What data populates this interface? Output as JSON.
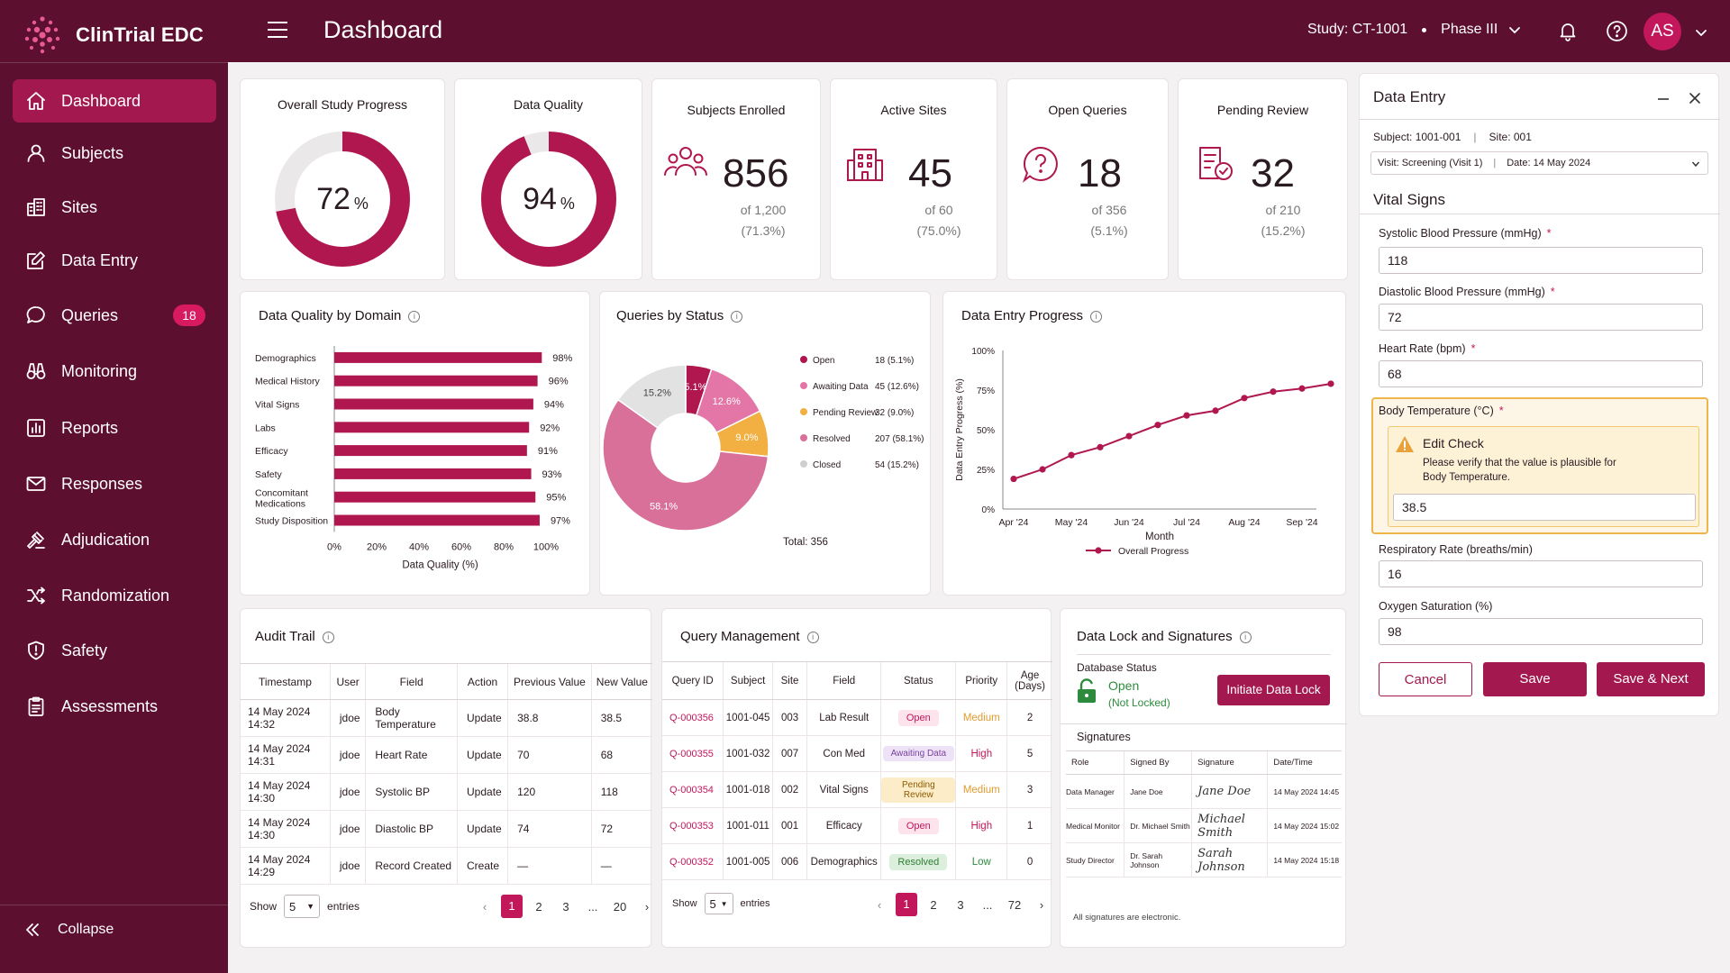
{
  "app": {
    "title": "ClinTrial EDC"
  },
  "sidebar": {
    "items": [
      {
        "label": "Dashboard",
        "icon": "home-icon",
        "active": true
      },
      {
        "label": "Subjects",
        "icon": "user-icon"
      },
      {
        "label": "Sites",
        "icon": "building-icon"
      },
      {
        "label": "Data Entry",
        "icon": "edit-icon"
      },
      {
        "label": "Queries",
        "icon": "chat-icon",
        "badge": "18"
      },
      {
        "label": "Monitoring",
        "icon": "binoculars-icon"
      },
      {
        "label": "Reports",
        "icon": "bar-chart-icon"
      },
      {
        "label": "Responses",
        "icon": "mail-icon"
      },
      {
        "label": "Adjudication",
        "icon": "gavel-icon"
      },
      {
        "label": "Randomization",
        "icon": "shuffle-icon"
      },
      {
        "label": "Safety",
        "icon": "shield-icon"
      },
      {
        "label": "Assessments",
        "icon": "clipboard-icon"
      }
    ],
    "collapse_label": "Collapse"
  },
  "header": {
    "title": "Dashboard",
    "study": "Study: CT-1001",
    "phase": "Phase III",
    "avatar_initials": "AS"
  },
  "kpis": {
    "overall": {
      "title": "Overall Study Progress",
      "value": "72",
      "unit": "%",
      "fraction": 0.72
    },
    "quality": {
      "title": "Data Quality",
      "value": "94",
      "unit": "%",
      "fraction": 0.94
    },
    "subjects": {
      "title": "Subjects Enrolled",
      "value": "856",
      "sub1": "of 1,200",
      "sub2": "(71.3%)"
    },
    "sites": {
      "title": "Active Sites",
      "value": "45",
      "sub1": "of 60",
      "sub2": "(75.0%)"
    },
    "queries": {
      "title": "Open Queries",
      "value": "18",
      "sub1": "of 356",
      "sub2": "(5.1%)"
    },
    "pending": {
      "title": "Pending Review",
      "value": "32",
      "sub1": "of 210",
      "sub2": "(15.2%)"
    }
  },
  "chart_data": [
    {
      "type": "bar",
      "title": "Data Quality by Domain",
      "orientation": "horizontal",
      "categories": [
        "Demographics",
        "Medical History",
        "Vital Signs",
        "Labs",
        "Efficacy",
        "Safety",
        "Concomitant Medications",
        "Study Disposition"
      ],
      "values": [
        98,
        96,
        94,
        92,
        91,
        93,
        95,
        97
      ],
      "value_labels": [
        "98%",
        "96%",
        "94%",
        "92%",
        "91%",
        "93%",
        "95%",
        "97%"
      ],
      "xlabel": "Data Quality (%)",
      "xlim": [
        0,
        100
      ],
      "xticks": [
        "0%",
        "20%",
        "40%",
        "60%",
        "80%",
        "100%"
      ],
      "color": "#b0174f"
    },
    {
      "type": "pie",
      "title": "Queries by Status",
      "donut": true,
      "total_label": "Total: 356",
      "slices": [
        {
          "name": "Open",
          "value": 18,
          "label": "5.1%",
          "count": "18 (5.1%)",
          "color": "#b0174f"
        },
        {
          "name": "Awaiting Data",
          "value": 45,
          "label": "12.6%",
          "count": "45 (12.6%)",
          "color": "#e376a6"
        },
        {
          "name": "Pending Review",
          "value": 32,
          "label": "9.0%",
          "count": "32 (9.0%)",
          "color": "#f2b042"
        },
        {
          "name": "Resolved",
          "value": 207,
          "label": "58.1%",
          "count": "207 (58.1%)",
          "color": "#d9709a"
        },
        {
          "name": "Closed",
          "value": 54,
          "label": "15.2%",
          "count": "54 (15.2%)",
          "color": "#e2e2e2"
        }
      ]
    },
    {
      "type": "line",
      "title": "Data Entry Progress",
      "xlabel": "Month",
      "ylabel": "Data Entry Progress (%)",
      "ylim": [
        0,
        100
      ],
      "yticks": [
        "0%",
        "25%",
        "50%",
        "75%",
        "100%"
      ],
      "xticks": [
        "Apr '24",
        "May '24",
        "Jun '24",
        "Jul '24",
        "Aug '24",
        "Sep '24"
      ],
      "series": [
        {
          "name": "Overall Progress",
          "color": "#b0174f",
          "x": [
            0,
            0.5,
            1,
            1.5,
            2,
            2.5,
            3,
            3.5,
            4,
            4.5,
            5,
            5.5
          ],
          "values": [
            19,
            25,
            34,
            39,
            46,
            53,
            59,
            62,
            70,
            74,
            76,
            79
          ]
        }
      ]
    }
  ],
  "audit": {
    "title": "Audit Trail",
    "columns": [
      "Timestamp",
      "User",
      "Field",
      "Action",
      "Previous Value",
      "New Value"
    ],
    "rows": [
      [
        "14 May 2024 14:32",
        "jdoe",
        "Body Temperature",
        "Update",
        "38.8",
        "38.5"
      ],
      [
        "14 May 2024 14:31",
        "jdoe",
        "Heart Rate",
        "Update",
        "70",
        "68"
      ],
      [
        "14 May 2024 14:30",
        "jdoe",
        "Systolic BP",
        "Update",
        "120",
        "118"
      ],
      [
        "14 May 2024 14:30",
        "jdoe",
        "Diastolic BP",
        "Update",
        "74",
        "72"
      ],
      [
        "14 May 2024 14:29",
        "jdoe",
        "Record Created",
        "Create",
        "—",
        "—"
      ]
    ],
    "show_label": "Show",
    "entries_label": "entries",
    "page_size": "5",
    "pages": [
      "1",
      "2",
      "3",
      "...",
      "20"
    ]
  },
  "queries_table": {
    "title": "Query Management",
    "columns": [
      "Query ID",
      "Subject",
      "Site",
      "Field",
      "Status",
      "Priority",
      "Age (Days)"
    ],
    "rows": [
      {
        "id": "Q-000356",
        "subject": "1001-045",
        "site": "003",
        "field": "Lab Result",
        "status": "Open",
        "priority": "Medium",
        "age": "2"
      },
      {
        "id": "Q-000355",
        "subject": "1001-032",
        "site": "007",
        "field": "Con Med",
        "status": "Awaiting Data",
        "priority": "High",
        "age": "5"
      },
      {
        "id": "Q-000354",
        "subject": "1001-018",
        "site": "002",
        "field": "Vital Signs",
        "status": "Pending Review",
        "priority": "Medium",
        "age": "3"
      },
      {
        "id": "Q-000353",
        "subject": "1001-011",
        "site": "001",
        "field": "Efficacy",
        "status": "Open",
        "priority": "High",
        "age": "1"
      },
      {
        "id": "Q-000352",
        "subject": "1001-005",
        "site": "006",
        "field": "Demographics",
        "status": "Resolved",
        "priority": "Low",
        "age": "0"
      }
    ],
    "show_label": "Show",
    "entries_label": "entries",
    "page_size": "5",
    "pages": [
      "1",
      "2",
      "3",
      "...",
      "72"
    ]
  },
  "lock": {
    "title": "Data Lock and Signatures",
    "db_status_label": "Database Status",
    "status": "Open",
    "status_sub": "(Not Locked)",
    "button": "Initiate Data Lock",
    "signatures_label": "Signatures",
    "columns": [
      "Role",
      "Signed By",
      "Signature",
      "Date/Time"
    ],
    "rows": [
      {
        "role": "Data Manager",
        "by": "Jane Doe",
        "sig": "Jane Doe",
        "date": "14 May 2024 14:45"
      },
      {
        "role": "Medical Monitor",
        "by": "Dr. Michael Smith",
        "sig": "Michael Smith",
        "date": "14 May 2024 15:02"
      },
      {
        "role": "Study Director",
        "by": "Dr. Sarah Johnson",
        "sig": "Sarah Johnson",
        "date": "14 May 2024 15:18"
      }
    ],
    "footnote": "All signatures are electronic."
  },
  "entry": {
    "title": "Data Entry",
    "subject": "Subject: 1001-001",
    "site": "Site: 001",
    "visit": "Visit: Screening (Visit 1)",
    "date": "Date: 14 May 2024",
    "section": "Vital Signs",
    "fields": {
      "systolic": {
        "label": "Systolic Blood Pressure (mmHg)",
        "value": "118"
      },
      "diastolic": {
        "label": "Diastolic Blood Pressure (mmHg)",
        "value": "72"
      },
      "heart": {
        "label": "Heart Rate (bpm)",
        "value": "68"
      },
      "temp": {
        "label": "Body Temperature (°C)",
        "value": "38.5"
      },
      "resp": {
        "label": "Respiratory Rate (breaths/min)",
        "value": "16"
      },
      "oxygen": {
        "label": "Oxygen Saturation (%)",
        "value": "98"
      }
    },
    "edit_check_title": "Edit Check",
    "edit_check_msg": "Please verify that the value is plausible for Body Temperature.",
    "cancel": "Cancel",
    "save": "Save",
    "save_next": "Save & Next"
  },
  "colors": {
    "brand": "#5c0f2f",
    "accent": "#a3194f",
    "warning": "#e9a23b"
  }
}
